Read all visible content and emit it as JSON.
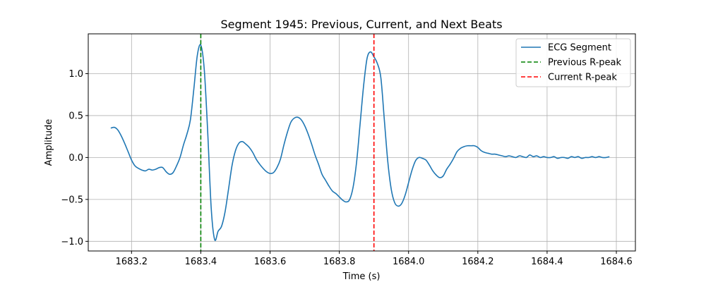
{
  "chart_data": {
    "type": "line",
    "title": "Segment 1945: Previous, Current, and Next Beats",
    "xlabel": "Time (s)",
    "ylabel": "Amplitude",
    "xlim": [
      1683.075,
      1684.655
    ],
    "ylim": [
      -1.115,
      1.475
    ],
    "xticks": [
      1683.2,
      1683.4,
      1683.6,
      1683.8,
      1684.0,
      1684.2,
      1684.4,
      1684.6
    ],
    "xtick_labels": [
      "1683.2",
      "1683.4",
      "1683.6",
      "1683.8",
      "1684.0",
      "1684.2",
      "1684.4",
      "1684.6"
    ],
    "yticks": [
      -1.0,
      -0.5,
      0.0,
      0.5,
      1.0
    ],
    "ytick_labels": [
      "−1.0",
      "−0.5",
      "0.0",
      "0.5",
      "1.0"
    ],
    "grid": true,
    "legend_position": "top-right",
    "series": [
      {
        "name": "ECG Segment",
        "style": "solid",
        "color": "#1f77b4",
        "points": [
          [
            1683.14,
            0.35
          ],
          [
            1683.15,
            0.36
          ],
          [
            1683.16,
            0.33
          ],
          [
            1683.17,
            0.26
          ],
          [
            1683.18,
            0.17
          ],
          [
            1683.19,
            0.07
          ],
          [
            1683.2,
            -0.03
          ],
          [
            1683.21,
            -0.1
          ],
          [
            1683.22,
            -0.13
          ],
          [
            1683.23,
            -0.15
          ],
          [
            1683.24,
            -0.16
          ],
          [
            1683.25,
            -0.14
          ],
          [
            1683.26,
            -0.15
          ],
          [
            1683.27,
            -0.14
          ],
          [
            1683.28,
            -0.12
          ],
          [
            1683.29,
            -0.12
          ],
          [
            1683.3,
            -0.17
          ],
          [
            1683.31,
            -0.2
          ],
          [
            1683.32,
            -0.18
          ],
          [
            1683.33,
            -0.1
          ],
          [
            1683.34,
            0.0
          ],
          [
            1683.35,
            0.15
          ],
          [
            1683.36,
            0.28
          ],
          [
            1683.37,
            0.45
          ],
          [
            1683.38,
            0.82
          ],
          [
            1683.39,
            1.22
          ],
          [
            1683.4,
            1.34
          ],
          [
            1683.41,
            1.05
          ],
          [
            1683.42,
            0.3
          ],
          [
            1683.43,
            -0.6
          ],
          [
            1683.44,
            -0.98
          ],
          [
            1683.45,
            -0.88
          ],
          [
            1683.46,
            -0.82
          ],
          [
            1683.47,
            -0.65
          ],
          [
            1683.48,
            -0.38
          ],
          [
            1683.49,
            -0.1
          ],
          [
            1683.5,
            0.08
          ],
          [
            1683.51,
            0.17
          ],
          [
            1683.52,
            0.19
          ],
          [
            1683.53,
            0.16
          ],
          [
            1683.54,
            0.12
          ],
          [
            1683.55,
            0.06
          ],
          [
            1683.56,
            -0.02
          ],
          [
            1683.57,
            -0.08
          ],
          [
            1683.58,
            -0.13
          ],
          [
            1683.59,
            -0.17
          ],
          [
            1683.6,
            -0.19
          ],
          [
            1683.61,
            -0.18
          ],
          [
            1683.62,
            -0.12
          ],
          [
            1683.63,
            -0.02
          ],
          [
            1683.64,
            0.15
          ],
          [
            1683.65,
            0.3
          ],
          [
            1683.66,
            0.42
          ],
          [
            1683.67,
            0.47
          ],
          [
            1683.68,
            0.48
          ],
          [
            1683.69,
            0.45
          ],
          [
            1683.7,
            0.38
          ],
          [
            1683.71,
            0.28
          ],
          [
            1683.72,
            0.16
          ],
          [
            1683.73,
            0.03
          ],
          [
            1683.74,
            -0.08
          ],
          [
            1683.75,
            -0.2
          ],
          [
            1683.76,
            -0.27
          ],
          [
            1683.77,
            -0.34
          ],
          [
            1683.78,
            -0.4
          ],
          [
            1683.79,
            -0.43
          ],
          [
            1683.8,
            -0.47
          ],
          [
            1683.81,
            -0.51
          ],
          [
            1683.82,
            -0.53
          ],
          [
            1683.83,
            -0.5
          ],
          [
            1683.84,
            -0.35
          ],
          [
            1683.85,
            -0.05
          ],
          [
            1683.86,
            0.4
          ],
          [
            1683.87,
            0.85
          ],
          [
            1683.88,
            1.18
          ],
          [
            1683.89,
            1.26
          ],
          [
            1683.9,
            1.2
          ],
          [
            1683.91,
            1.12
          ],
          [
            1683.92,
            0.95
          ],
          [
            1683.93,
            0.45
          ],
          [
            1683.94,
            -0.05
          ],
          [
            1683.95,
            -0.38
          ],
          [
            1683.96,
            -0.54
          ],
          [
            1683.97,
            -0.58
          ],
          [
            1683.98,
            -0.55
          ],
          [
            1683.99,
            -0.45
          ],
          [
            1684.0,
            -0.3
          ],
          [
            1684.01,
            -0.15
          ],
          [
            1684.02,
            -0.04
          ],
          [
            1684.03,
            0.0
          ],
          [
            1684.04,
            -0.01
          ],
          [
            1684.05,
            -0.03
          ],
          [
            1684.06,
            -0.09
          ],
          [
            1684.07,
            -0.16
          ],
          [
            1684.08,
            -0.21
          ],
          [
            1684.09,
            -0.24
          ],
          [
            1684.1,
            -0.22
          ],
          [
            1684.11,
            -0.14
          ],
          [
            1684.12,
            -0.08
          ],
          [
            1684.13,
            -0.01
          ],
          [
            1684.14,
            0.07
          ],
          [
            1684.15,
            0.11
          ],
          [
            1684.16,
            0.13
          ],
          [
            1684.17,
            0.14
          ],
          [
            1684.18,
            0.14
          ],
          [
            1684.19,
            0.14
          ],
          [
            1684.2,
            0.12
          ],
          [
            1684.21,
            0.08
          ],
          [
            1684.22,
            0.06
          ],
          [
            1684.23,
            0.05
          ],
          [
            1684.24,
            0.04
          ],
          [
            1684.25,
            0.04
          ],
          [
            1684.26,
            0.03
          ],
          [
            1684.27,
            0.02
          ],
          [
            1684.28,
            0.01
          ],
          [
            1684.29,
            0.02
          ],
          [
            1684.3,
            0.01
          ],
          [
            1684.31,
            0.0
          ],
          [
            1684.32,
            0.02
          ],
          [
            1684.33,
            0.01
          ],
          [
            1684.34,
            0.0
          ],
          [
            1684.35,
            0.03
          ],
          [
            1684.36,
            0.01
          ],
          [
            1684.37,
            0.02
          ],
          [
            1684.38,
            0.0
          ],
          [
            1684.39,
            0.01
          ],
          [
            1684.4,
            0.0
          ],
          [
            1684.41,
            0.0
          ],
          [
            1684.42,
            0.01
          ],
          [
            1684.43,
            -0.01
          ],
          [
            1684.44,
            0.0
          ],
          [
            1684.45,
            0.0
          ],
          [
            1684.46,
            -0.01
          ],
          [
            1684.47,
            0.01
          ],
          [
            1684.48,
            0.0
          ],
          [
            1684.49,
            0.01
          ],
          [
            1684.5,
            -0.01
          ],
          [
            1684.51,
            0.0
          ],
          [
            1684.52,
            0.0
          ],
          [
            1684.53,
            0.01
          ],
          [
            1684.54,
            0.0
          ],
          [
            1684.55,
            0.01
          ],
          [
            1684.56,
            0.0
          ],
          [
            1684.57,
            0.0
          ],
          [
            1684.58,
            0.01
          ]
        ]
      },
      {
        "name": "Previous R-peak",
        "style": "dashed",
        "color": "#008000",
        "vline_x": 1683.4
      },
      {
        "name": "Current R-peak",
        "style": "dashed",
        "color": "#ff0000",
        "vline_x": 1683.9
      }
    ]
  }
}
